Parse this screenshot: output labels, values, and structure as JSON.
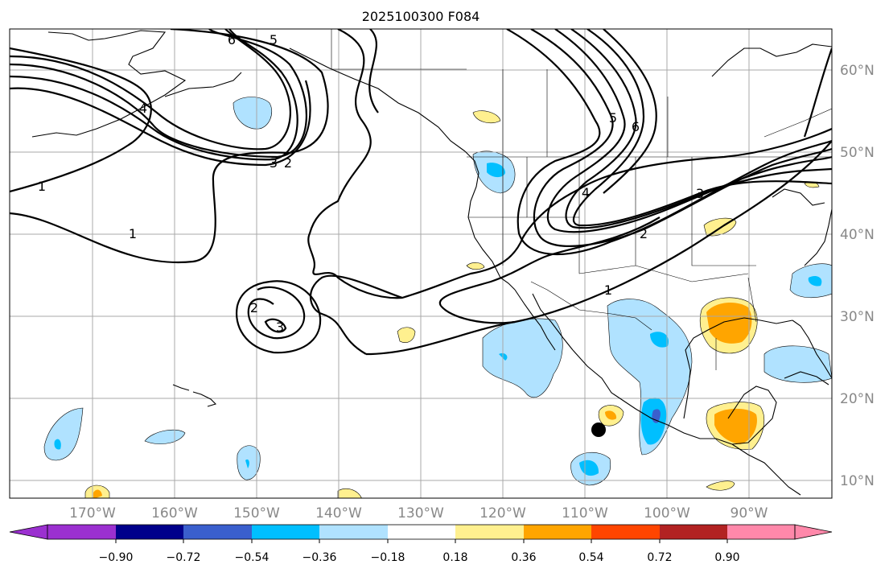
{
  "title": "2025100300 F084",
  "lat_ticks": [
    {
      "label": "60°N",
      "lat": 60
    },
    {
      "label": "50°N",
      "lat": 50
    },
    {
      "label": "40°N",
      "lat": 40
    },
    {
      "label": "30°N",
      "lat": 30
    },
    {
      "label": "20°N",
      "lat": 20
    },
    {
      "label": "10°N",
      "lat": 10
    }
  ],
  "lon_ticks": [
    {
      "label": "170°W",
      "lon": -170
    },
    {
      "label": "160°W",
      "lon": -160
    },
    {
      "label": "150°W",
      "lon": -150
    },
    {
      "label": "140°W",
      "lon": -140
    },
    {
      "label": "130°W",
      "lon": -130
    },
    {
      "label": "120°W",
      "lon": -120
    },
    {
      "label": "110°W",
      "lon": -110
    },
    {
      "label": "100°W",
      "lon": -100
    },
    {
      "label": "90°W",
      "lon": -90
    }
  ],
  "colorbar": {
    "colors": [
      "#9b30d0",
      "#00008b",
      "#3a5fcd",
      "#00bfff",
      "#b0e2ff",
      "#ffffff",
      "#fff08f",
      "#ffa500",
      "#ff4500",
      "#b22222",
      "#ff88aa"
    ],
    "tick_labels": [
      "−0.90",
      "−0.72",
      "−0.54",
      "−0.36",
      "−0.18",
      "0.18",
      "0.36",
      "0.54",
      "0.72",
      "0.90"
    ]
  },
  "contour_labels": [
    "6",
    "5",
    "4",
    "3",
    "2",
    "1",
    "1",
    "2",
    "3",
    "5",
    "6",
    "4",
    "3",
    "2",
    "1"
  ],
  "point_marker": {
    "name": "location-marker",
    "lon": -108.5,
    "lat": 16.3
  }
}
